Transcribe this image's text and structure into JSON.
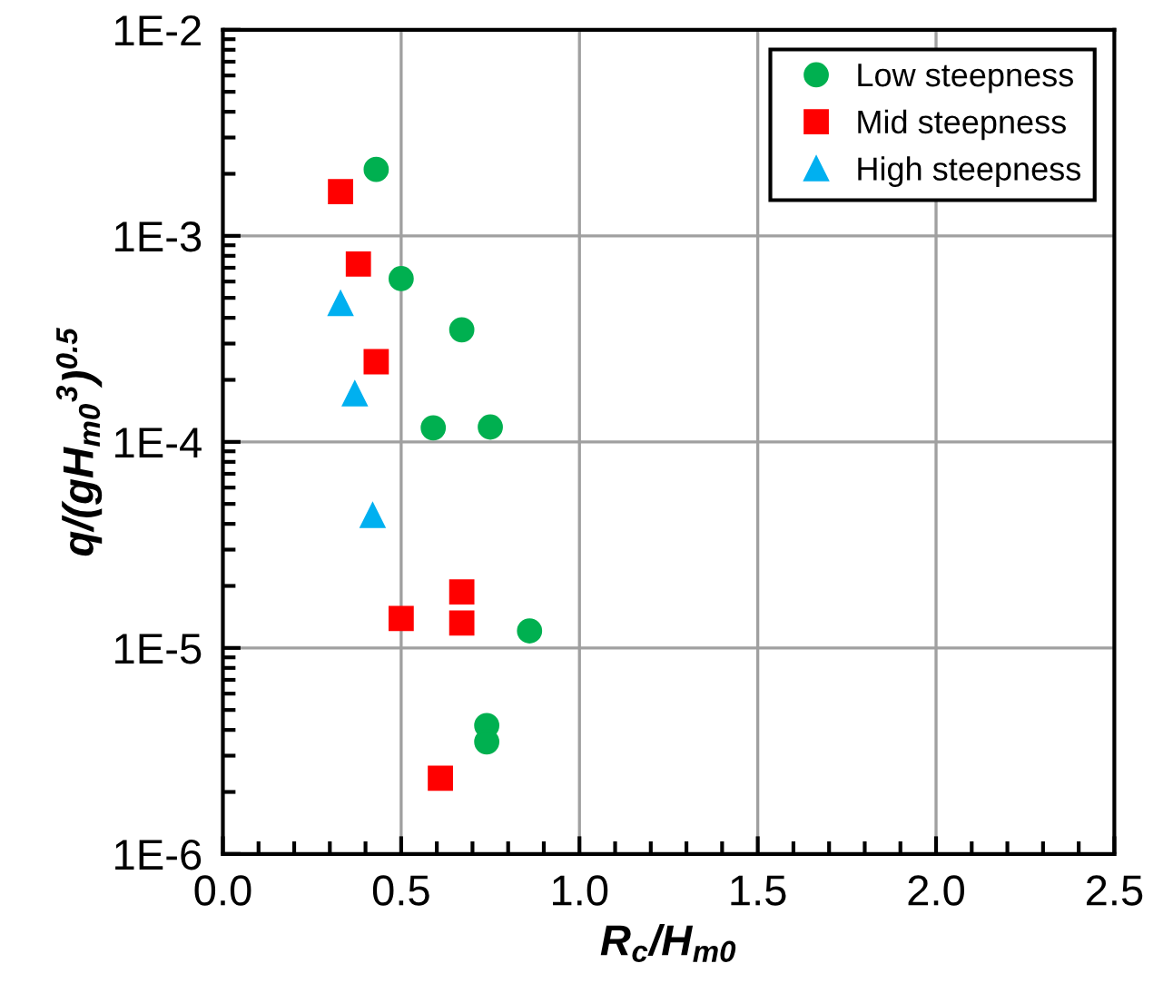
{
  "chart_data": {
    "type": "scatter",
    "xlabel": "R$_{c}$/H$_{m0}$",
    "ylabel": "q/(gH$_{m0}$$^{3}$)$^{0.5}$",
    "log": "y",
    "xlim": [
      0,
      2.5
    ],
    "xticks": [
      {
        "value": 0,
        "label": "0.0"
      },
      0.5,
      {
        "value": 1,
        "label": "1.0"
      },
      1.5,
      {
        "value": 2,
        "label": "2.0"
      },
      2.5
    ],
    "ylim": [
      1e-06,
      0.01
    ],
    "yticks": [
      {
        "value": 1e-06,
        "label": "1E-6"
      },
      {
        "value": 1e-05,
        "label": "1E-5"
      },
      {
        "value": 0.0001,
        "label": "1E-4"
      },
      {
        "value": 0.001,
        "label": "1E-3"
      },
      {
        "value": 0.01,
        "label": "1E-2"
      }
    ],
    "grid": true,
    "legend": "top right",
    "series": [
      {
        "name": "Low steepness",
        "color": "#00b050",
        "marker": "circle",
        "x": [
          0.43,
          0.5,
          0.67,
          0.59,
          0.75,
          0.86,
          0.74,
          0.74
        ],
        "values": [
          0.0021,
          0.00062,
          0.00035,
          0.000117,
          0.000118,
          1.21e-05,
          4.2e-06,
          3.5e-06
        ]
      },
      {
        "name": "Mid steepness",
        "color": "#ff0000",
        "marker": "square",
        "x": [
          0.33,
          0.38,
          0.43,
          0.5,
          0.67,
          0.67,
          0.61
        ],
        "values": [
          0.00164,
          0.00073,
          0.000245,
          1.39e-05,
          1.87e-05,
          1.32e-05,
          2.33e-06
        ]
      },
      {
        "name": "High steepness",
        "color": "#00b0f0",
        "marker": "triangle",
        "x": [
          0.33,
          0.37,
          0.42
        ],
        "values": [
          0.00047,
          0.000171,
          4.4e-05
        ]
      }
    ]
  }
}
